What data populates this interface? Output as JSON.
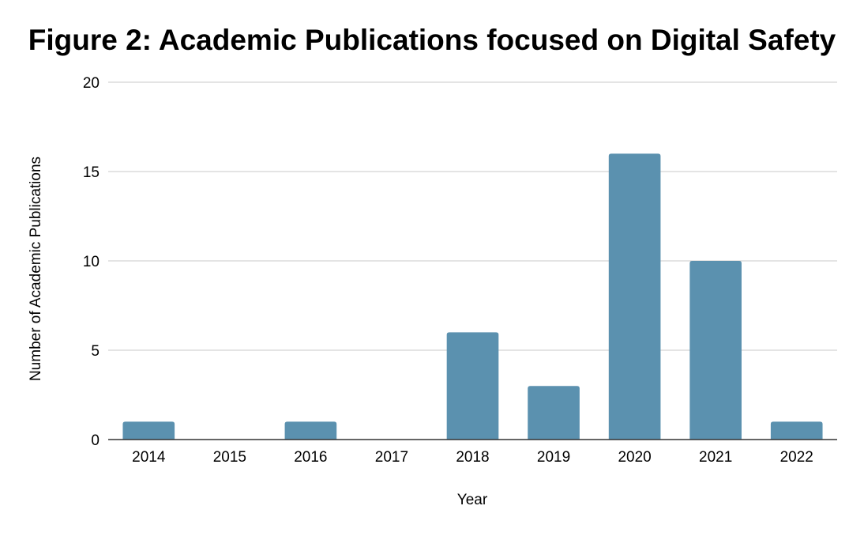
{
  "chart_data": {
    "type": "bar",
    "title": "Figure 2: Academic Publications focused on Digital Safety",
    "xlabel": "Year",
    "ylabel": "Number of Academic Publications",
    "categories": [
      "2014",
      "2015",
      "2016",
      "2017",
      "2018",
      "2019",
      "2020",
      "2021",
      "2022"
    ],
    "values": [
      1,
      0,
      1,
      0,
      6,
      3,
      16,
      10,
      1
    ],
    "ylim": [
      0,
      20
    ],
    "yticks": [
      0,
      5,
      10,
      15,
      20
    ],
    "grid": true,
    "legend": "none",
    "bar_color": "#5b91af"
  }
}
